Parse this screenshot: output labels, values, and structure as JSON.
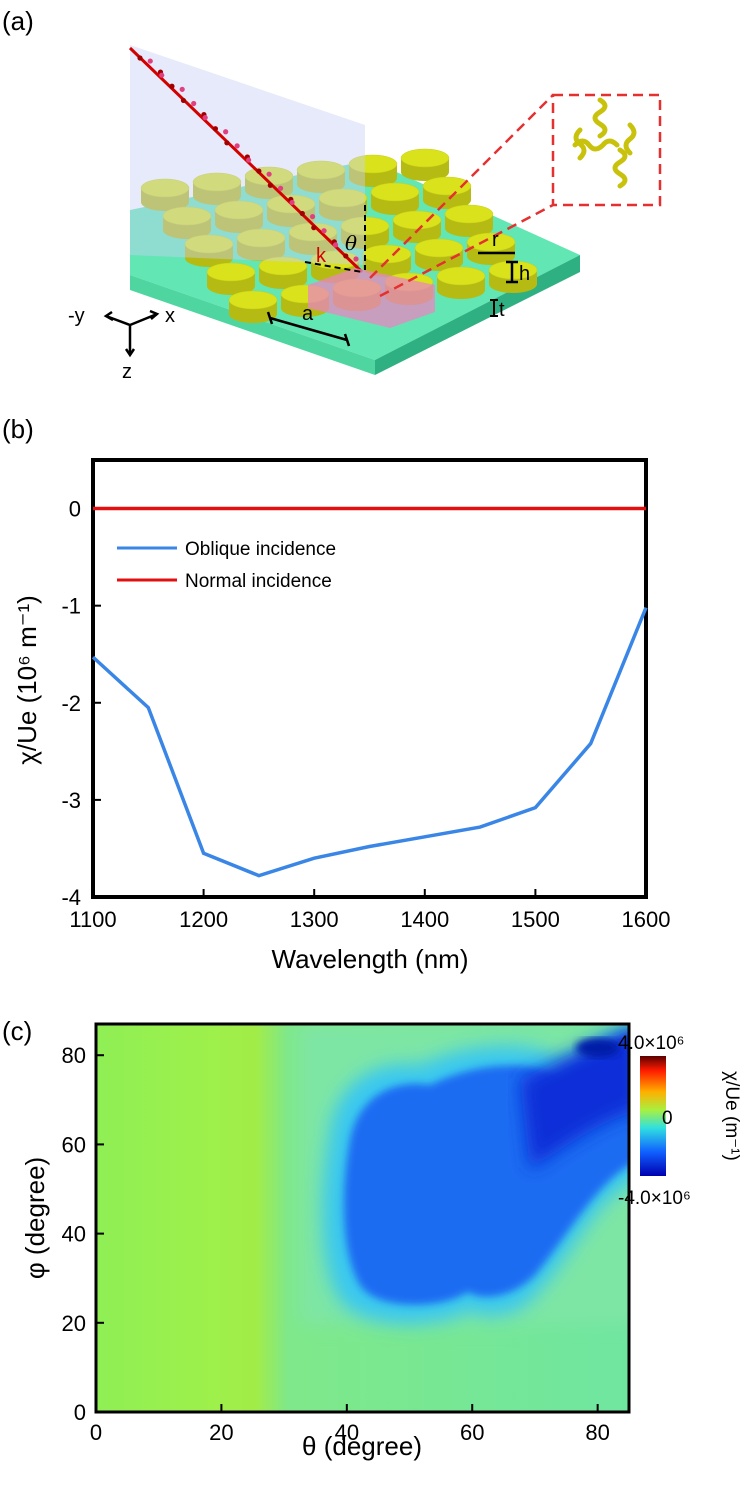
{
  "panels": {
    "a": "(a)",
    "b": "(b)",
    "c": "(c)"
  },
  "schematic": {
    "axes": {
      "neg_y": "-y",
      "x": "x",
      "z": "z"
    },
    "labels": {
      "k": "k",
      "theta": "θ",
      "r": "r",
      "h": "h",
      "t": "t",
      "a": "a"
    },
    "colors": {
      "pillar": "#d9e21a",
      "substrate": "#5fe8b0",
      "beam": "#d40000",
      "inset": "#e53030"
    }
  },
  "chart_data": [
    {
      "type": "line",
      "panel": "b",
      "xlabel": "Wavelength (nm)",
      "ylabel": "χ/Ue (10⁶ m⁻¹)",
      "xlim": [
        1100,
        1600
      ],
      "ylim": [
        -4,
        0.5
      ],
      "xticks": [
        "1100",
        "1200",
        "1300",
        "1400",
        "1500",
        "1600"
      ],
      "yticks": [
        "0",
        "-1",
        "-2",
        "-3",
        "-4"
      ],
      "legend_position": "upper-left",
      "grid": false,
      "series": [
        {
          "name": "Oblique incidence",
          "color": "#3a86e6",
          "x": [
            1100,
            1150,
            1200,
            1250,
            1300,
            1350,
            1400,
            1450,
            1500,
            1550,
            1600
          ],
          "y": [
            -1.53,
            -2.05,
            -3.55,
            -3.78,
            -3.6,
            -3.48,
            -3.38,
            -3.28,
            -3.08,
            -2.42,
            -1.02
          ]
        },
        {
          "name": "Normal incidence",
          "color": "#e01010",
          "x": [
            1100,
            1150,
            1200,
            1250,
            1300,
            1350,
            1400,
            1450,
            1500,
            1550,
            1600
          ],
          "y": [
            0,
            0,
            0,
            0,
            0,
            0,
            0,
            0,
            0,
            0,
            0
          ]
        }
      ]
    },
    {
      "type": "heatmap",
      "panel": "c",
      "xlabel": "θ (degree)",
      "ylabel": "φ (degree)",
      "xlim": [
        0,
        85
      ],
      "ylim": [
        0,
        87
      ],
      "xticks": [
        "0",
        "20",
        "40",
        "60",
        "80"
      ],
      "yticks": [
        "0",
        "20",
        "40",
        "60",
        "80"
      ],
      "colorbar": {
        "title": "χ/Ue (m⁻¹)",
        "max_label": "4.0×10⁶",
        "mid_label": "0",
        "min_label": "-4.0×10⁶",
        "range": [
          -4000000,
          4000000
        ]
      },
      "description_values": {
        "background_level": 0,
        "min_region_theta_range": [
          35,
          85
        ],
        "min_region_phi_range": [
          18,
          87
        ],
        "min_value_approx": -3600000
      }
    }
  ]
}
